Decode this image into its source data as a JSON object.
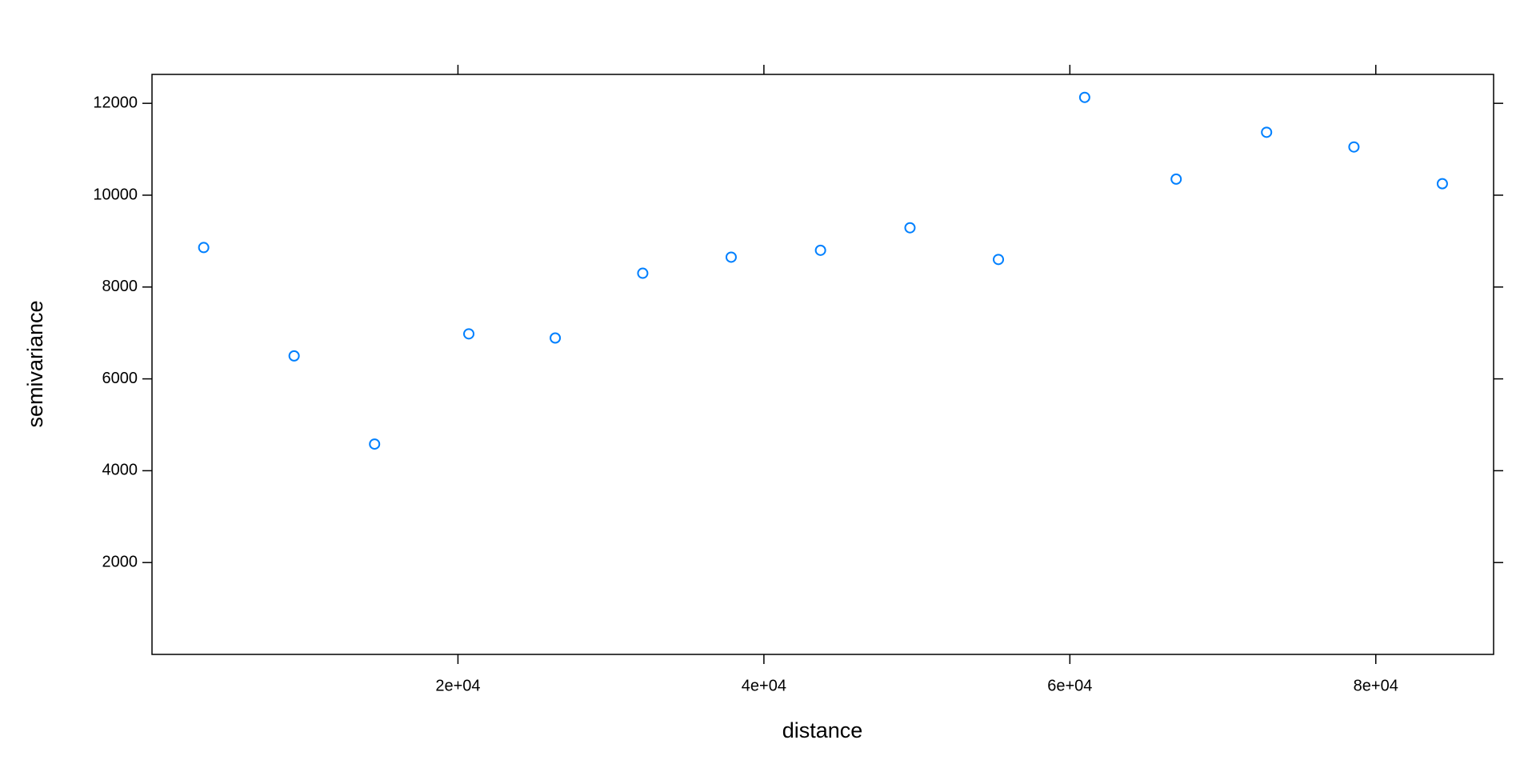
{
  "chart_data": {
    "type": "scatter",
    "x_label": "distance",
    "y_label": "semivariance",
    "color": "#0080ff",
    "x": [
      3380,
      9290,
      14550,
      20710,
      26360,
      32080,
      37860,
      43700,
      49550,
      55330,
      60970,
      66950,
      72860,
      78570,
      84350
    ],
    "values": [
      8860,
      6500,
      4580,
      6980,
      6890,
      8300,
      8650,
      8800,
      9290,
      8600,
      12130,
      10350,
      11370,
      11050,
      10250
    ],
    "xlim": [
      0,
      87700
    ],
    "ylim": [
      0,
      12630
    ],
    "xticks": [
      {
        "value": 20000,
        "label": "2e+04"
      },
      {
        "value": 40000,
        "label": "4e+04"
      },
      {
        "value": 60000,
        "label": "6e+04"
      },
      {
        "value": 80000,
        "label": "8e+04"
      }
    ],
    "yticks": [
      2000,
      4000,
      6000,
      8000,
      10000,
      12000
    ]
  }
}
